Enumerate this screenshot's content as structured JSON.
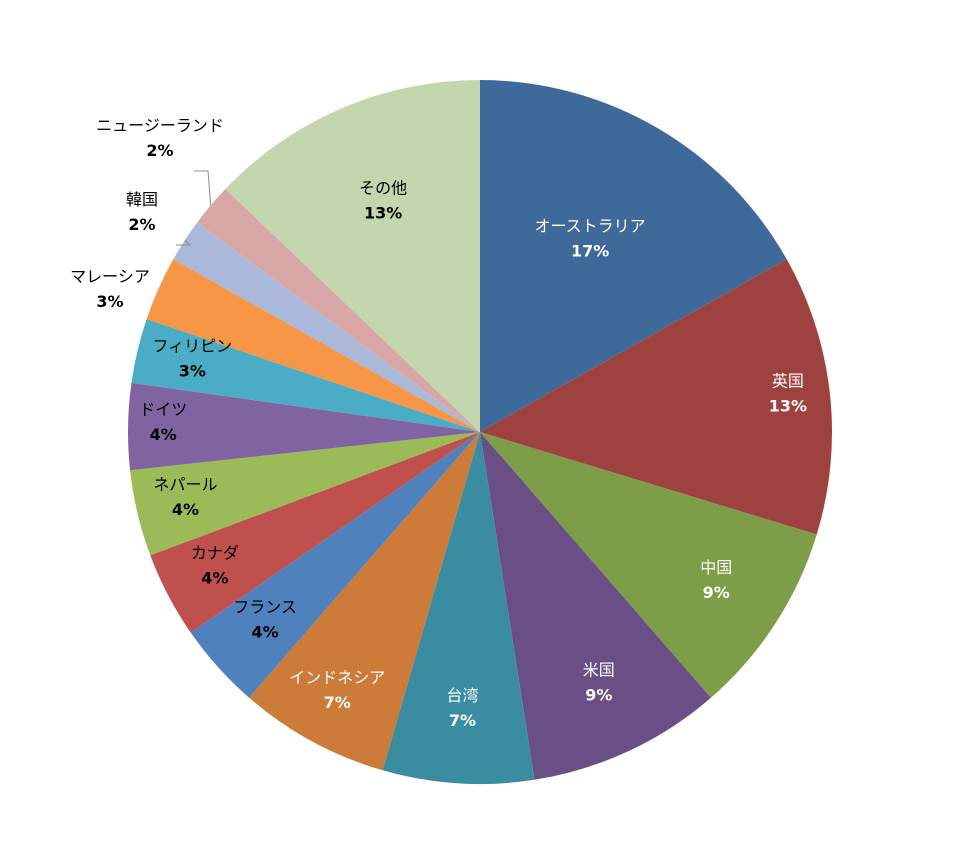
{
  "chart_data": {
    "type": "pie",
    "title": "",
    "slices": [
      {
        "label": "オーストラリア",
        "value": 17,
        "pct_label": "17%",
        "color": "#3E6A9A",
        "text_color": "#FFFFFF"
      },
      {
        "label": "英国",
        "value": 13,
        "pct_label": "13%",
        "color": "#9E4240",
        "text_color": "#FFFFFF"
      },
      {
        "label": "中国",
        "value": 9,
        "pct_label": "9%",
        "color": "#7E9D48",
        "text_color": "#FFFFFF"
      },
      {
        "label": "米国",
        "value": 9,
        "pct_label": "9%",
        "color": "#6A4E86",
        "text_color": "#FFFFFF"
      },
      {
        "label": "台湾",
        "value": 7,
        "pct_label": "7%",
        "color": "#3A8CA0",
        "text_color": "#FFFFFF"
      },
      {
        "label": "インドネシア",
        "value": 7,
        "pct_label": "7%",
        "color": "#CD7B38",
        "text_color": "#FFFFFF"
      },
      {
        "label": "フランス",
        "value": 4,
        "pct_label": "4%",
        "color": "#4F81BD",
        "text_color": "#000000"
      },
      {
        "label": "カナダ",
        "value": 4,
        "pct_label": "4%",
        "color": "#C0504D",
        "text_color": "#000000"
      },
      {
        "label": "ネパール",
        "value": 4,
        "pct_label": "4%",
        "color": "#9BBB59",
        "text_color": "#000000"
      },
      {
        "label": "ドイツ",
        "value": 4,
        "pct_label": "4%",
        "color": "#8064A2",
        "text_color": "#000000"
      },
      {
        "label": "フィリピン",
        "value": 3,
        "pct_label": "3%",
        "color": "#4BACC6",
        "text_color": "#000000"
      },
      {
        "label": "マレーシア",
        "value": 3,
        "pct_label": "3%",
        "color": "#F79646",
        "text_color": "#000000"
      },
      {
        "label": "韓国",
        "value": 2,
        "pct_label": "2%",
        "color": "#AAB9D9",
        "text_color": "#000000"
      },
      {
        "label": "ニュージーランド",
        "value": 2,
        "pct_label": "2%",
        "color": "#D9A6A6",
        "text_color": "#000000"
      },
      {
        "label": "その他",
        "value": 13,
        "pct_label": "13%",
        "color": "#C4D6AE",
        "text_color": "#000000"
      }
    ],
    "start_angle": "12 o'clock",
    "direction": "clockwise",
    "legend": "none"
  }
}
